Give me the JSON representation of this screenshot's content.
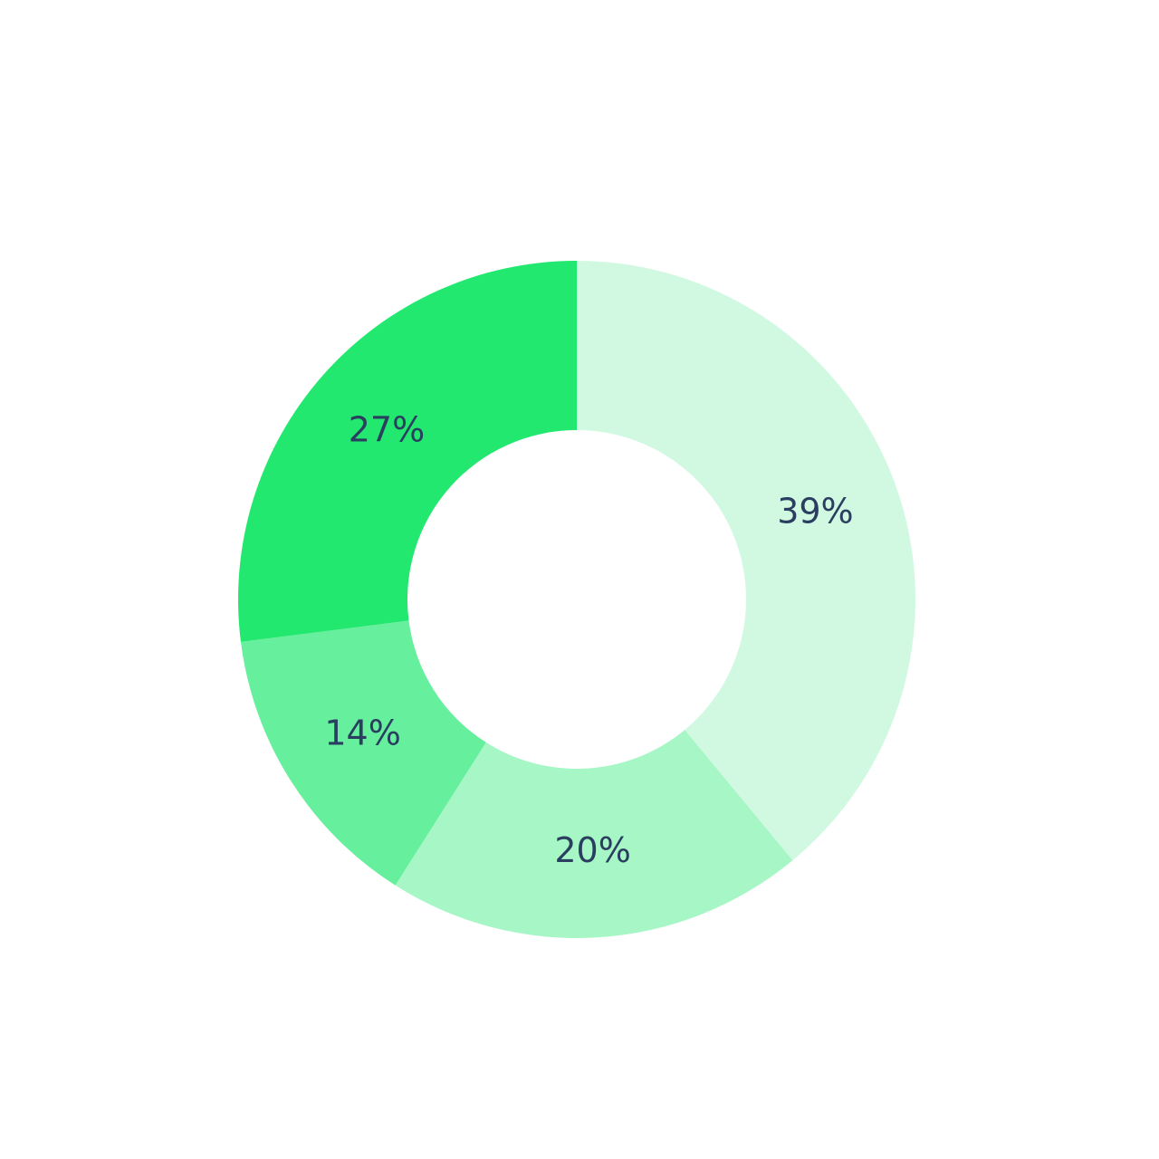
{
  "chart_data": {
    "type": "donut",
    "values": [
      39,
      20,
      14,
      27
    ],
    "value_labels": [
      "39%",
      "20%",
      "14%",
      "27%"
    ],
    "colors": [
      "#d1f9e2",
      "#a6f6c6",
      "#66ef9c",
      "#22e86f"
    ]
  }
}
